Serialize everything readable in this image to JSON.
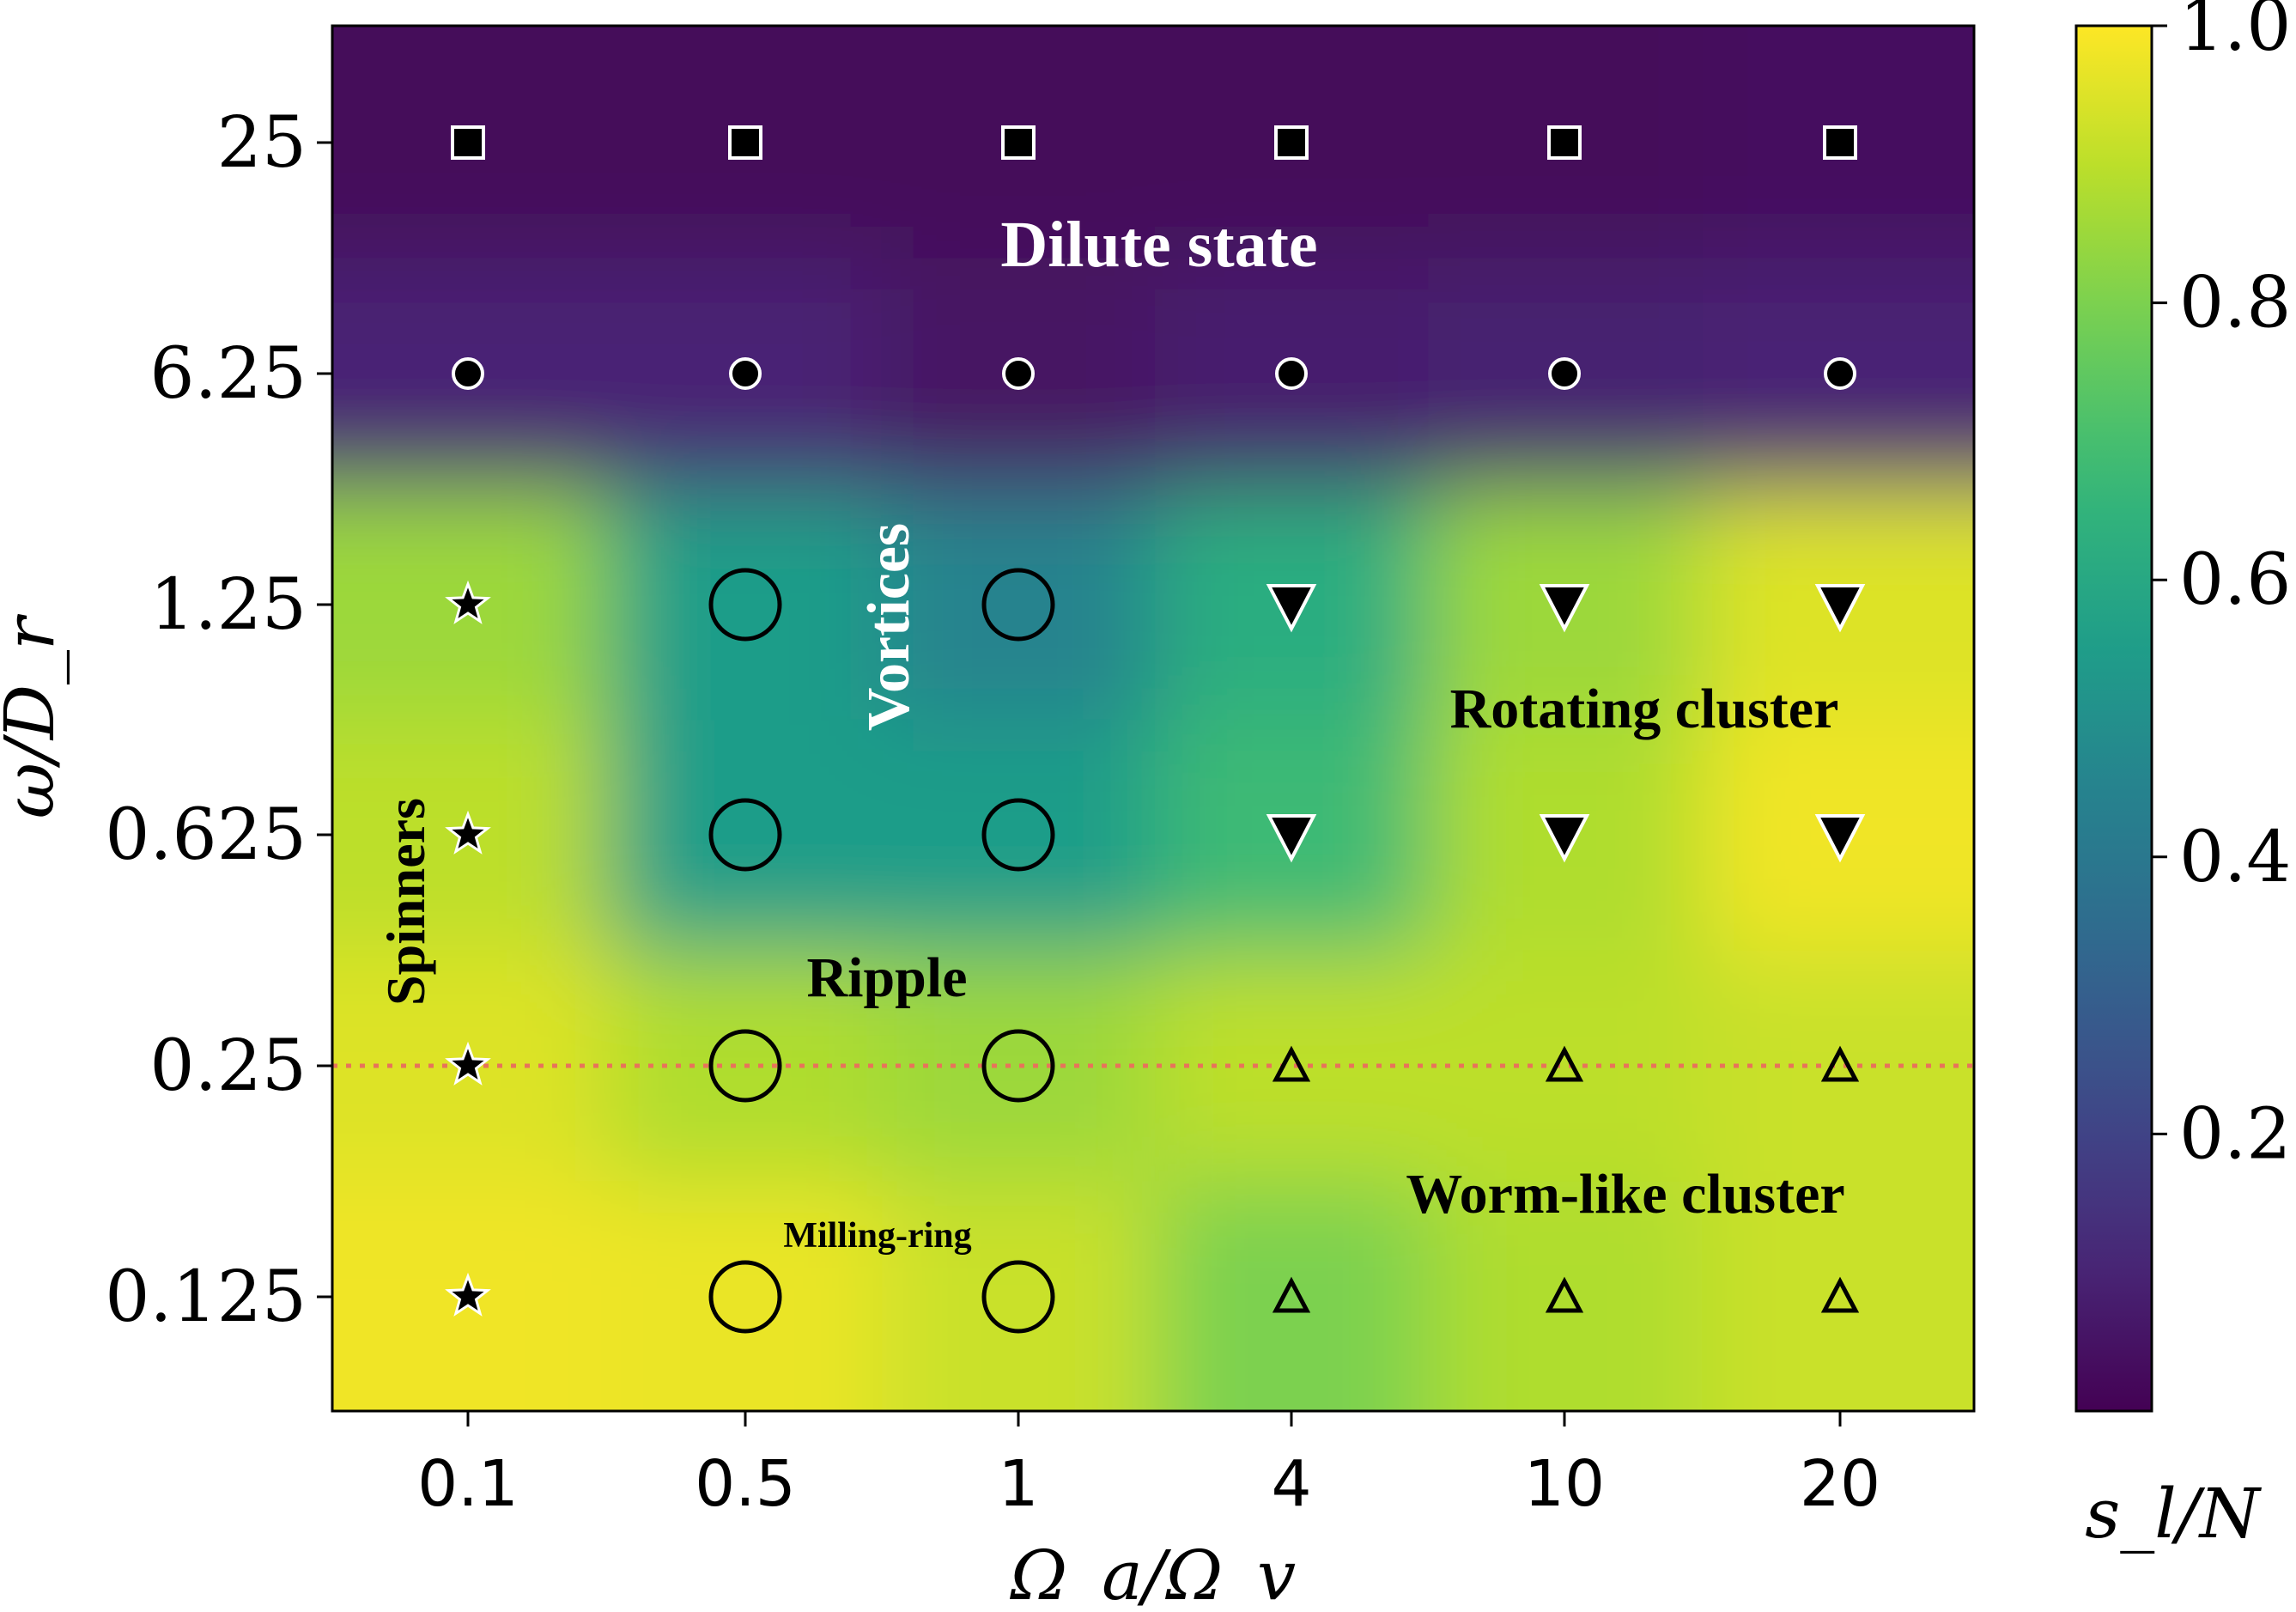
{
  "chart_data": {
    "type": "heatmap",
    "title": "",
    "xlabel": "Ω_a/Ω_v",
    "ylabel": "ω/D_r",
    "colorbar_label": "s_l/N",
    "x_categories": [
      "0.1",
      "0.5",
      "1",
      "4",
      "10",
      "20"
    ],
    "y_categories": [
      "25",
      "6.25",
      "1.25",
      "0.625",
      "0.25",
      "0.125"
    ],
    "colorbar": {
      "colormap": "viridis",
      "range": [
        0,
        1.0
      ],
      "ticks": [
        "0.2",
        "0.4",
        "0.6",
        "0.8",
        "1.0"
      ]
    },
    "values": [
      [
        0.02,
        0.02,
        0.02,
        0.02,
        0.02,
        0.03
      ],
      [
        0.1,
        0.1,
        0.05,
        0.08,
        0.09,
        0.1
      ],
      [
        0.85,
        0.55,
        0.45,
        0.62,
        0.85,
        0.95
      ],
      [
        0.9,
        0.55,
        0.55,
        0.68,
        0.88,
        0.98
      ],
      [
        0.95,
        0.88,
        0.85,
        0.9,
        0.9,
        0.92
      ],
      [
        0.98,
        0.97,
        0.92,
        0.8,
        0.88,
        0.92
      ]
    ],
    "markers": [
      [
        "square",
        "square",
        "square",
        "square",
        "square",
        "square"
      ],
      [
        "dot",
        "dot",
        "dot",
        "dot",
        "dot",
        "dot"
      ],
      [
        "star",
        "ring",
        "ring",
        "triangle-down",
        "triangle-down",
        "triangle-down"
      ],
      [
        "star",
        "ring",
        "ring",
        "triangle-down",
        "triangle-down",
        "triangle-down"
      ],
      [
        "star",
        "ring",
        "ring",
        "triangle-up",
        "triangle-up",
        "triangle-up"
      ],
      [
        "star",
        "ring",
        "ring",
        "triangle-up",
        "triangle-up",
        "triangle-up"
      ]
    ],
    "annotations": [
      {
        "text": "Dilute state",
        "color": "#ffffff"
      },
      {
        "text": "Vortices",
        "color": "#ffffff",
        "rotation": -90
      },
      {
        "text": "Rotating cluster",
        "color": "#000000"
      },
      {
        "text": "Spinners",
        "color": "#000000",
        "rotation": -90
      },
      {
        "text": "Ripple",
        "color": "#000000"
      },
      {
        "text": "Worm-like cluster",
        "color": "#000000"
      },
      {
        "text": "Milling-ring",
        "color": "#000000"
      }
    ],
    "reference_line": {
      "y": "0.25",
      "style": "dotted",
      "color": "#e8735a"
    }
  }
}
